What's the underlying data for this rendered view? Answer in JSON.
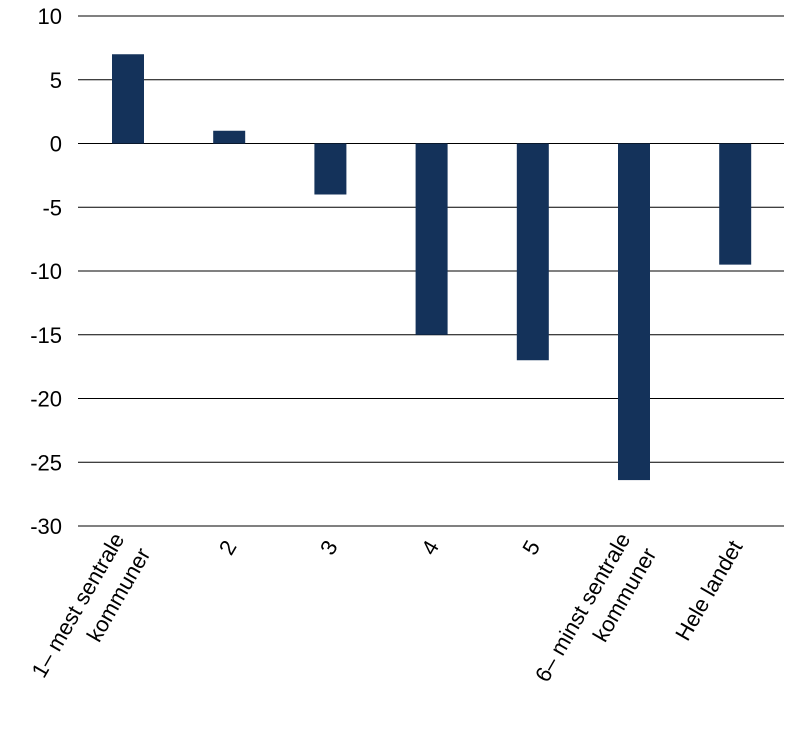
{
  "chart_data": {
    "type": "bar",
    "categories": [
      [
        "1– mest sentrale",
        "kommuner"
      ],
      [
        "2"
      ],
      [
        "3"
      ],
      [
        "4"
      ],
      [
        "5"
      ],
      [
        "6– minst sentrale",
        "kommuner"
      ],
      [
        "Hele landet"
      ]
    ],
    "values": [
      7,
      1,
      -4,
      -15,
      -17,
      -26.4,
      -9.5
    ],
    "yticks": [
      "10",
      "5",
      "0",
      "-5",
      "-10",
      "-15",
      "-20",
      "-25",
      "-30"
    ],
    "ylim": [
      -30,
      10
    ],
    "grid": true,
    "bar_color": "#14325a",
    "title": "",
    "xlabel": "",
    "ylabel": ""
  }
}
